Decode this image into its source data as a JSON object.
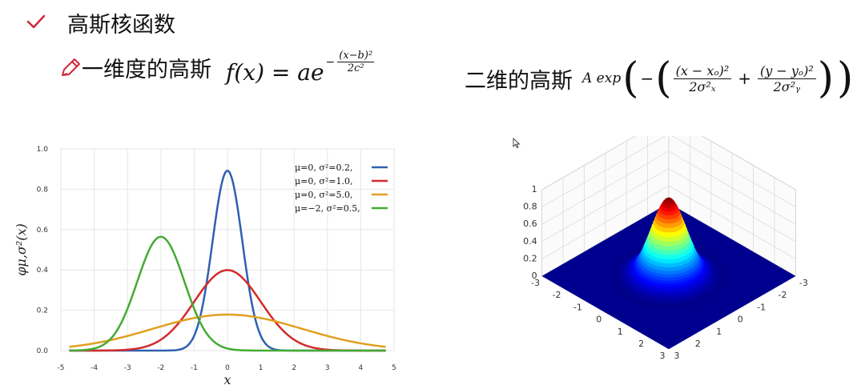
{
  "header": {
    "title": "高斯核函数"
  },
  "one_d": {
    "label": "一维度的高斯",
    "formula_lhs": "f(x) = ae",
    "exp_num": "(x−b)²",
    "exp_den": "2c²"
  },
  "two_d": {
    "label": "二维的高斯",
    "formula_A": "A exp",
    "num1": "(x − xₒ)²",
    "den1": "2σ²ₓ",
    "num2": "(y − yₒ)²",
    "den2": "2σ²ᵧ"
  },
  "colors": {
    "blue": "#3060b0",
    "red": "#d42a2a",
    "orange": "#e0a020",
    "green": "#44aa33"
  },
  "chart_data": [
    {
      "type": "line",
      "xlabel": "x",
      "ylabel": "φμ,σ²(x)",
      "xlim": [
        -5,
        5
      ],
      "ylim": [
        0,
        1.0
      ],
      "x_ticks": [
        "-5",
        "-4",
        "-3",
        "-2",
        "-1",
        "0",
        "1",
        "2",
        "3",
        "4",
        "5"
      ],
      "y_ticks": [
        "0.0",
        "0.2",
        "0.4",
        "0.6",
        "0.8",
        "1.0"
      ],
      "legend_position": "top-right",
      "series": [
        {
          "name": "μ=0,   σ²=0.2,",
          "mu": 0,
          "var": 0.2,
          "color": "#3060b0"
        },
        {
          "name": "μ=0,   σ²=1.0,",
          "mu": 0,
          "var": 1.0,
          "color": "#d42a2a"
        },
        {
          "name": "μ=0,   σ²=5.0,",
          "mu": 0,
          "var": 5.0,
          "color": "#e0a020"
        },
        {
          "name": "μ=−2,  σ²=0.5,",
          "mu": -2,
          "var": 0.5,
          "color": "#44aa33"
        }
      ]
    },
    {
      "type": "surface",
      "z_ticks": [
        "0",
        "0.2",
        "0.4",
        "0.6",
        "0.8",
        "1"
      ],
      "x_ticks": [
        "-3",
        "-2",
        "-1",
        "0",
        "1",
        "2",
        "3"
      ],
      "y_ticks": [
        "-3",
        "-2",
        "-1",
        "0",
        "1",
        "2",
        "3"
      ],
      "peak": 1
    }
  ]
}
